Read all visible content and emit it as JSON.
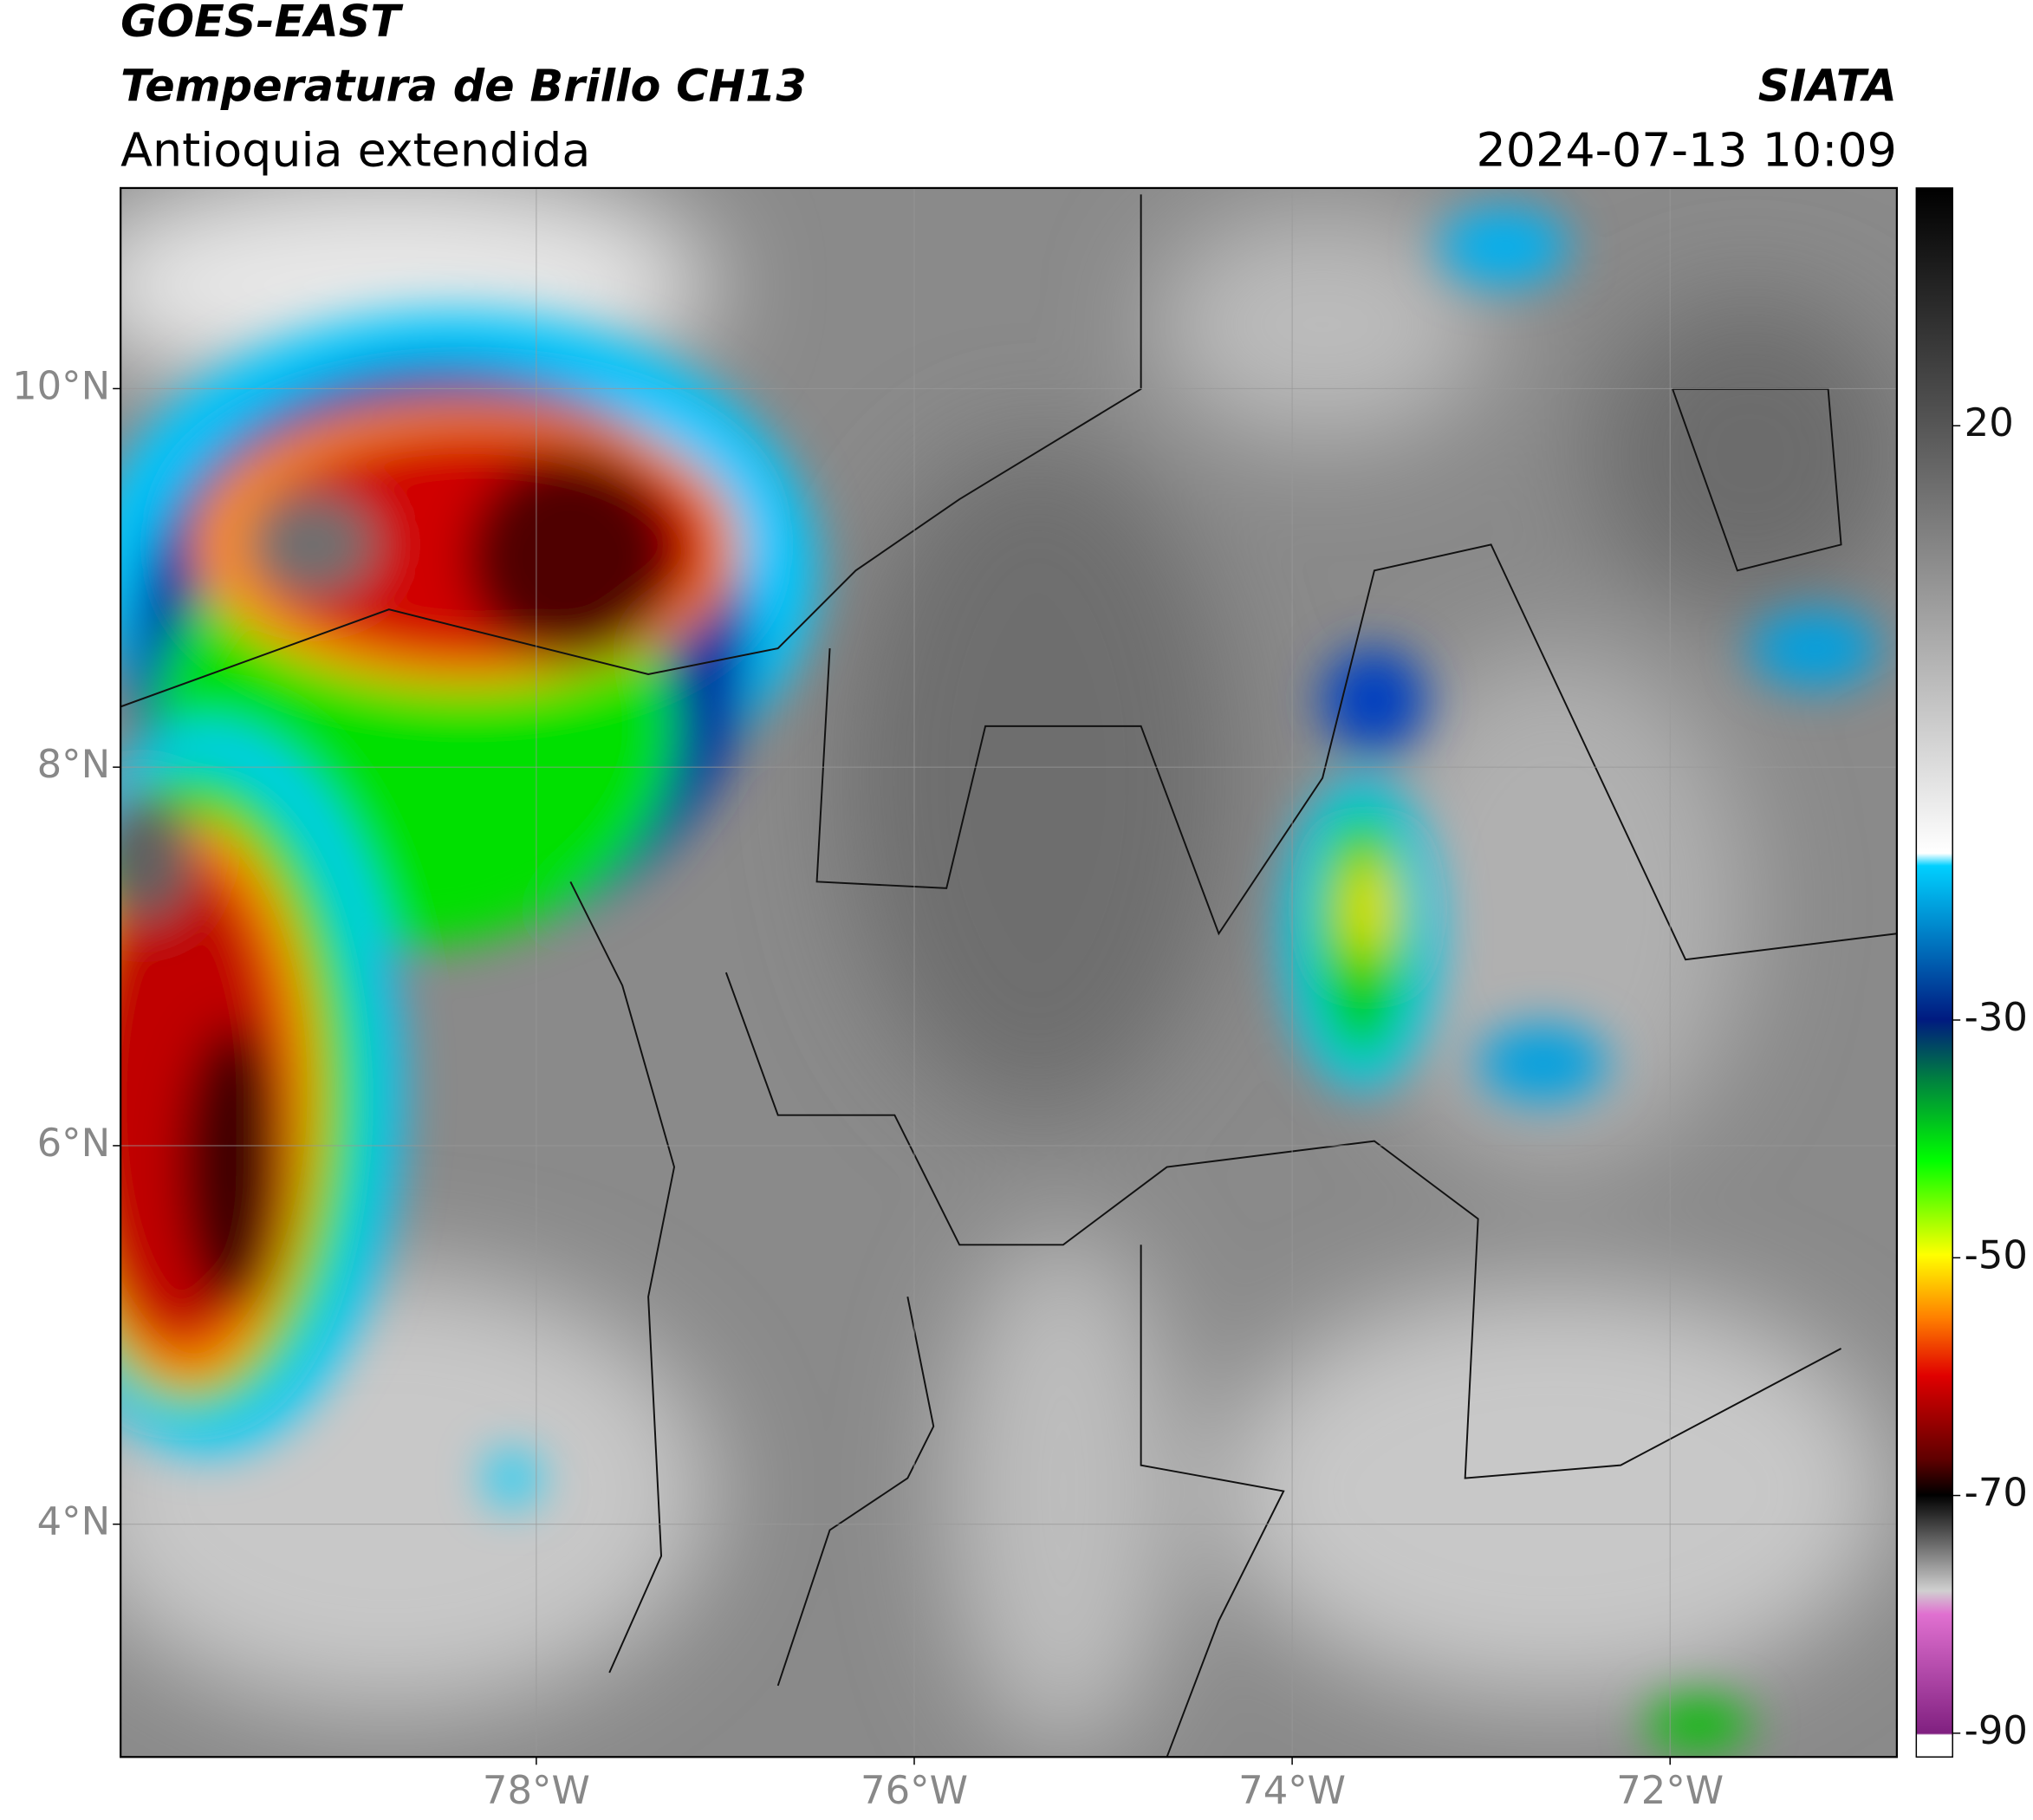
{
  "header": {
    "title": "GOES-EAST",
    "subtitle": "Temperatura de Brillo CH13",
    "region": "Antioquia extendida",
    "source": "SIATA",
    "datetime": "2024-07-13 10:09"
  },
  "map": {
    "xlim": [
      -80.2,
      -70.8
    ],
    "ylim": [
      2.77,
      11.06
    ],
    "xticks": [
      {
        "value": -78,
        "label": "78°W"
      },
      {
        "value": -76,
        "label": "76°W"
      },
      {
        "value": -74,
        "label": "74°W"
      },
      {
        "value": -72,
        "label": "72°W"
      }
    ],
    "yticks": [
      {
        "value": 10,
        "label": "10°N"
      },
      {
        "value": 8,
        "label": "8°N"
      },
      {
        "value": 6,
        "label": "6°N"
      },
      {
        "value": 4,
        "label": "4°N"
      }
    ],
    "grid": true
  },
  "colorbar": {
    "clim": [
      -92,
      40
    ],
    "ticks": [
      20,
      -30,
      -50,
      -70,
      -90
    ]
  }
}
